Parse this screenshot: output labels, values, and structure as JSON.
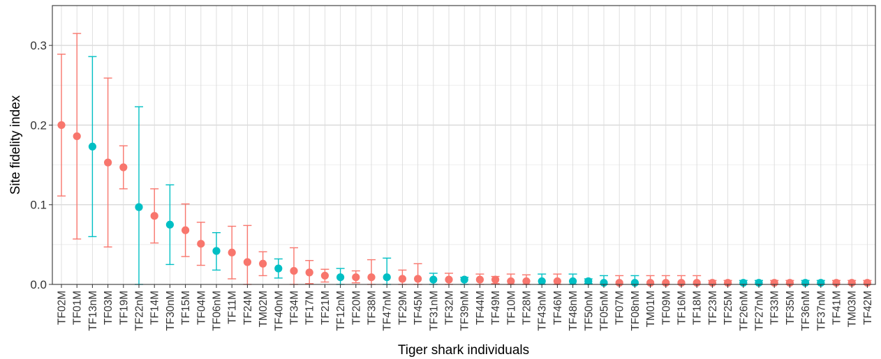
{
  "chart_data": {
    "type": "scatter",
    "title": "",
    "xlabel": "Tiger shark individuals",
    "ylabel": "Site fidelity index",
    "ylim": [
      0,
      0.35
    ],
    "yticks": [
      0.0,
      0.1,
      0.2,
      0.3
    ],
    "ytick_labels": [
      "0.0",
      "0.1",
      "0.2",
      "0.3"
    ],
    "grid": true,
    "legend": "none",
    "colors": {
      "M": "#F8766D",
      "nM": "#00BFC4"
    },
    "points": [
      {
        "id": "TF02M",
        "group": "M",
        "y": 0.2,
        "lo": 0.111,
        "hi": 0.289
      },
      {
        "id": "TF01M",
        "group": "M",
        "y": 0.186,
        "lo": 0.057,
        "hi": 0.315
      },
      {
        "id": "TF13nM",
        "group": "nM",
        "y": 0.173,
        "lo": 0.06,
        "hi": 0.286
      },
      {
        "id": "TF03M",
        "group": "M",
        "y": 0.153,
        "lo": 0.047,
        "hi": 0.259
      },
      {
        "id": "TF19M",
        "group": "M",
        "y": 0.147,
        "lo": 0.12,
        "hi": 0.174
      },
      {
        "id": "TF22nM",
        "group": "nM",
        "y": 0.097,
        "lo": 0.0,
        "hi": 0.223
      },
      {
        "id": "TF14M",
        "group": "M",
        "y": 0.086,
        "lo": 0.052,
        "hi": 0.12
      },
      {
        "id": "TF30nM",
        "group": "nM",
        "y": 0.075,
        "lo": 0.025,
        "hi": 0.125
      },
      {
        "id": "TF15M",
        "group": "M",
        "y": 0.068,
        "lo": 0.035,
        "hi": 0.101
      },
      {
        "id": "TF04M",
        "group": "M",
        "y": 0.051,
        "lo": 0.024,
        "hi": 0.078
      },
      {
        "id": "TF06nM",
        "group": "nM",
        "y": 0.042,
        "lo": 0.018,
        "hi": 0.065
      },
      {
        "id": "TF11M",
        "group": "M",
        "y": 0.04,
        "lo": 0.007,
        "hi": 0.073
      },
      {
        "id": "TF24M",
        "group": "M",
        "y": 0.028,
        "lo": 0.0,
        "hi": 0.074
      },
      {
        "id": "TM02M",
        "group": "M",
        "y": 0.026,
        "lo": 0.011,
        "hi": 0.041
      },
      {
        "id": "TF40nM",
        "group": "nM",
        "y": 0.02,
        "lo": 0.008,
        "hi": 0.032
      },
      {
        "id": "TF34M",
        "group": "M",
        "y": 0.017,
        "lo": 0.0,
        "hi": 0.046
      },
      {
        "id": "TF17M",
        "group": "M",
        "y": 0.015,
        "lo": 0.001,
        "hi": 0.03
      },
      {
        "id": "TF21M",
        "group": "M",
        "y": 0.011,
        "lo": 0.003,
        "hi": 0.019
      },
      {
        "id": "TF12nM",
        "group": "nM",
        "y": 0.009,
        "lo": 0.0,
        "hi": 0.02
      },
      {
        "id": "TF20M",
        "group": "M",
        "y": 0.009,
        "lo": 0.002,
        "hi": 0.017
      },
      {
        "id": "TF38M",
        "group": "M",
        "y": 0.009,
        "lo": 0.0,
        "hi": 0.031
      },
      {
        "id": "TF47nM",
        "group": "nM",
        "y": 0.009,
        "lo": 0.0,
        "hi": 0.033
      },
      {
        "id": "TF29M",
        "group": "M",
        "y": 0.007,
        "lo": 0.0,
        "hi": 0.018
      },
      {
        "id": "TF45M",
        "group": "M",
        "y": 0.007,
        "lo": 0.0,
        "hi": 0.026
      },
      {
        "id": "TF31nM",
        "group": "nM",
        "y": 0.006,
        "lo": 0.0,
        "hi": 0.014
      },
      {
        "id": "TF32M",
        "group": "M",
        "y": 0.006,
        "lo": 0.0,
        "hi": 0.014
      },
      {
        "id": "TF39nM",
        "group": "nM",
        "y": 0.006,
        "lo": 0.0,
        "hi": 0.009
      },
      {
        "id": "TF44M",
        "group": "M",
        "y": 0.006,
        "lo": 0.0,
        "hi": 0.013
      },
      {
        "id": "TF49M",
        "group": "M",
        "y": 0.006,
        "lo": 0.001,
        "hi": 0.01
      },
      {
        "id": "TF10M",
        "group": "M",
        "y": 0.004,
        "lo": 0.0,
        "hi": 0.013
      },
      {
        "id": "TF28M",
        "group": "M",
        "y": 0.004,
        "lo": 0.0,
        "hi": 0.012
      },
      {
        "id": "TF43nM",
        "group": "nM",
        "y": 0.004,
        "lo": 0.0,
        "hi": 0.013
      },
      {
        "id": "TF46M",
        "group": "M",
        "y": 0.004,
        "lo": 0.0,
        "hi": 0.013
      },
      {
        "id": "TF48nM",
        "group": "nM",
        "y": 0.004,
        "lo": 0.0,
        "hi": 0.013
      },
      {
        "id": "TF50nM",
        "group": "nM",
        "y": 0.004,
        "lo": 0.001,
        "hi": 0.007
      },
      {
        "id": "TF05nM",
        "group": "nM",
        "y": 0.002,
        "lo": 0.0,
        "hi": 0.011
      },
      {
        "id": "TF07M",
        "group": "M",
        "y": 0.002,
        "lo": 0.0,
        "hi": 0.011
      },
      {
        "id": "TF08nM",
        "group": "nM",
        "y": 0.002,
        "lo": 0.0,
        "hi": 0.011
      },
      {
        "id": "TM01M",
        "group": "M",
        "y": 0.002,
        "lo": 0.0,
        "hi": 0.011
      },
      {
        "id": "TF09M",
        "group": "M",
        "y": 0.002,
        "lo": 0.0,
        "hi": 0.011
      },
      {
        "id": "TF16M",
        "group": "M",
        "y": 0.002,
        "lo": 0.0,
        "hi": 0.011
      },
      {
        "id": "TF18M",
        "group": "M",
        "y": 0.002,
        "lo": 0.0,
        "hi": 0.011
      },
      {
        "id": "TF23M",
        "group": "M",
        "y": 0.002,
        "lo": 0.0,
        "hi": 0.005
      },
      {
        "id": "TF25M",
        "group": "M",
        "y": 0.002,
        "lo": 0.0,
        "hi": 0.005
      },
      {
        "id": "TF26nM",
        "group": "nM",
        "y": 0.002,
        "lo": 0.0,
        "hi": 0.005
      },
      {
        "id": "TF27nM",
        "group": "nM",
        "y": 0.002,
        "lo": 0.0,
        "hi": 0.005
      },
      {
        "id": "TF33M",
        "group": "M",
        "y": 0.002,
        "lo": 0.0,
        "hi": 0.005
      },
      {
        "id": "TF35M",
        "group": "M",
        "y": 0.002,
        "lo": 0.0,
        "hi": 0.005
      },
      {
        "id": "TF36nM",
        "group": "nM",
        "y": 0.002,
        "lo": 0.0,
        "hi": 0.005
      },
      {
        "id": "TF37nM",
        "group": "nM",
        "y": 0.002,
        "lo": 0.0,
        "hi": 0.005
      },
      {
        "id": "TF41M",
        "group": "M",
        "y": 0.002,
        "lo": 0.0,
        "hi": 0.005
      },
      {
        "id": "TM03M",
        "group": "M",
        "y": 0.002,
        "lo": 0.0,
        "hi": 0.005
      },
      {
        "id": "TF42M",
        "group": "M",
        "y": 0.002,
        "lo": 0.0,
        "hi": 0.005
      }
    ]
  }
}
